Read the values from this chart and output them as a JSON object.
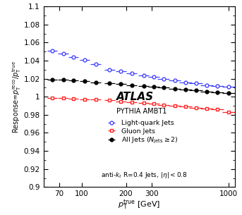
{
  "title": "",
  "xlabel": "$p_\\mathrm{T}^\\mathrm{true}$ [GeV]",
  "ylabel": "Response=$p_\\mathrm{T}^\\mathrm{reco}/p_\\mathrm{T}^\\mathrm{true}$",
  "ylim": [
    0.9,
    1.1
  ],
  "xlim": [
    55,
    1100
  ],
  "atlas_label": "ATLAS",
  "mc_label": "PYTHIA AMBT1",
  "legend_label_quark": "Light-quark Jets",
  "legend_label_gluon": "Gluon Jets",
  "legend_label_all": "All Jets ($N_\\mathrm{jets} \\geq 2$)",
  "footnote": "anti-$k_t$ R=0.4 Jets, $|\\eta|<0.8$",
  "quark_x": [
    63,
    75,
    88,
    105,
    125,
    155,
    185,
    220,
    265,
    310,
    360,
    430,
    510,
    600,
    710,
    840,
    1000
  ],
  "quark_y": [
    1.051,
    1.048,
    1.044,
    1.041,
    1.036,
    1.03,
    1.028,
    1.026,
    1.024,
    1.022,
    1.02,
    1.018,
    1.016,
    1.015,
    1.013,
    1.012,
    1.011
  ],
  "quark_xerr": [
    5,
    6,
    7,
    8,
    10,
    13,
    15,
    18,
    22,
    27,
    33,
    40,
    50,
    60,
    70,
    85,
    100
  ],
  "quark_color": "#4444ff",
  "gluon_x": [
    63,
    75,
    88,
    105,
    125,
    155,
    185,
    220,
    265,
    310,
    360,
    430,
    510,
    600,
    710,
    840,
    1000
  ],
  "gluon_y": [
    0.999,
    0.999,
    0.998,
    0.997,
    0.997,
    0.996,
    0.995,
    0.994,
    0.993,
    0.992,
    0.991,
    0.99,
    0.989,
    0.988,
    0.987,
    0.986,
    0.983
  ],
  "gluon_xerr": [
    5,
    6,
    7,
    8,
    10,
    13,
    15,
    18,
    22,
    27,
    33,
    40,
    50,
    60,
    70,
    85,
    100
  ],
  "gluon_color": "#ff2222",
  "all_x": [
    63,
    75,
    88,
    105,
    125,
    155,
    185,
    220,
    265,
    310,
    360,
    430,
    510,
    600,
    710,
    840,
    1000
  ],
  "all_y": [
    1.019,
    1.019,
    1.018,
    1.017,
    1.016,
    1.015,
    1.014,
    1.013,
    1.012,
    1.011,
    1.01,
    1.009,
    1.008,
    1.007,
    1.006,
    1.005,
    1.004
  ],
  "all_xerr": [
    5,
    6,
    7,
    8,
    10,
    13,
    15,
    18,
    22,
    27,
    33,
    40,
    50,
    60,
    70,
    85,
    100
  ],
  "all_color": "#000000",
  "yticks": [
    0.9,
    0.92,
    0.94,
    0.96,
    0.98,
    1.0,
    1.02,
    1.04,
    1.06,
    1.08,
    1.1
  ]
}
